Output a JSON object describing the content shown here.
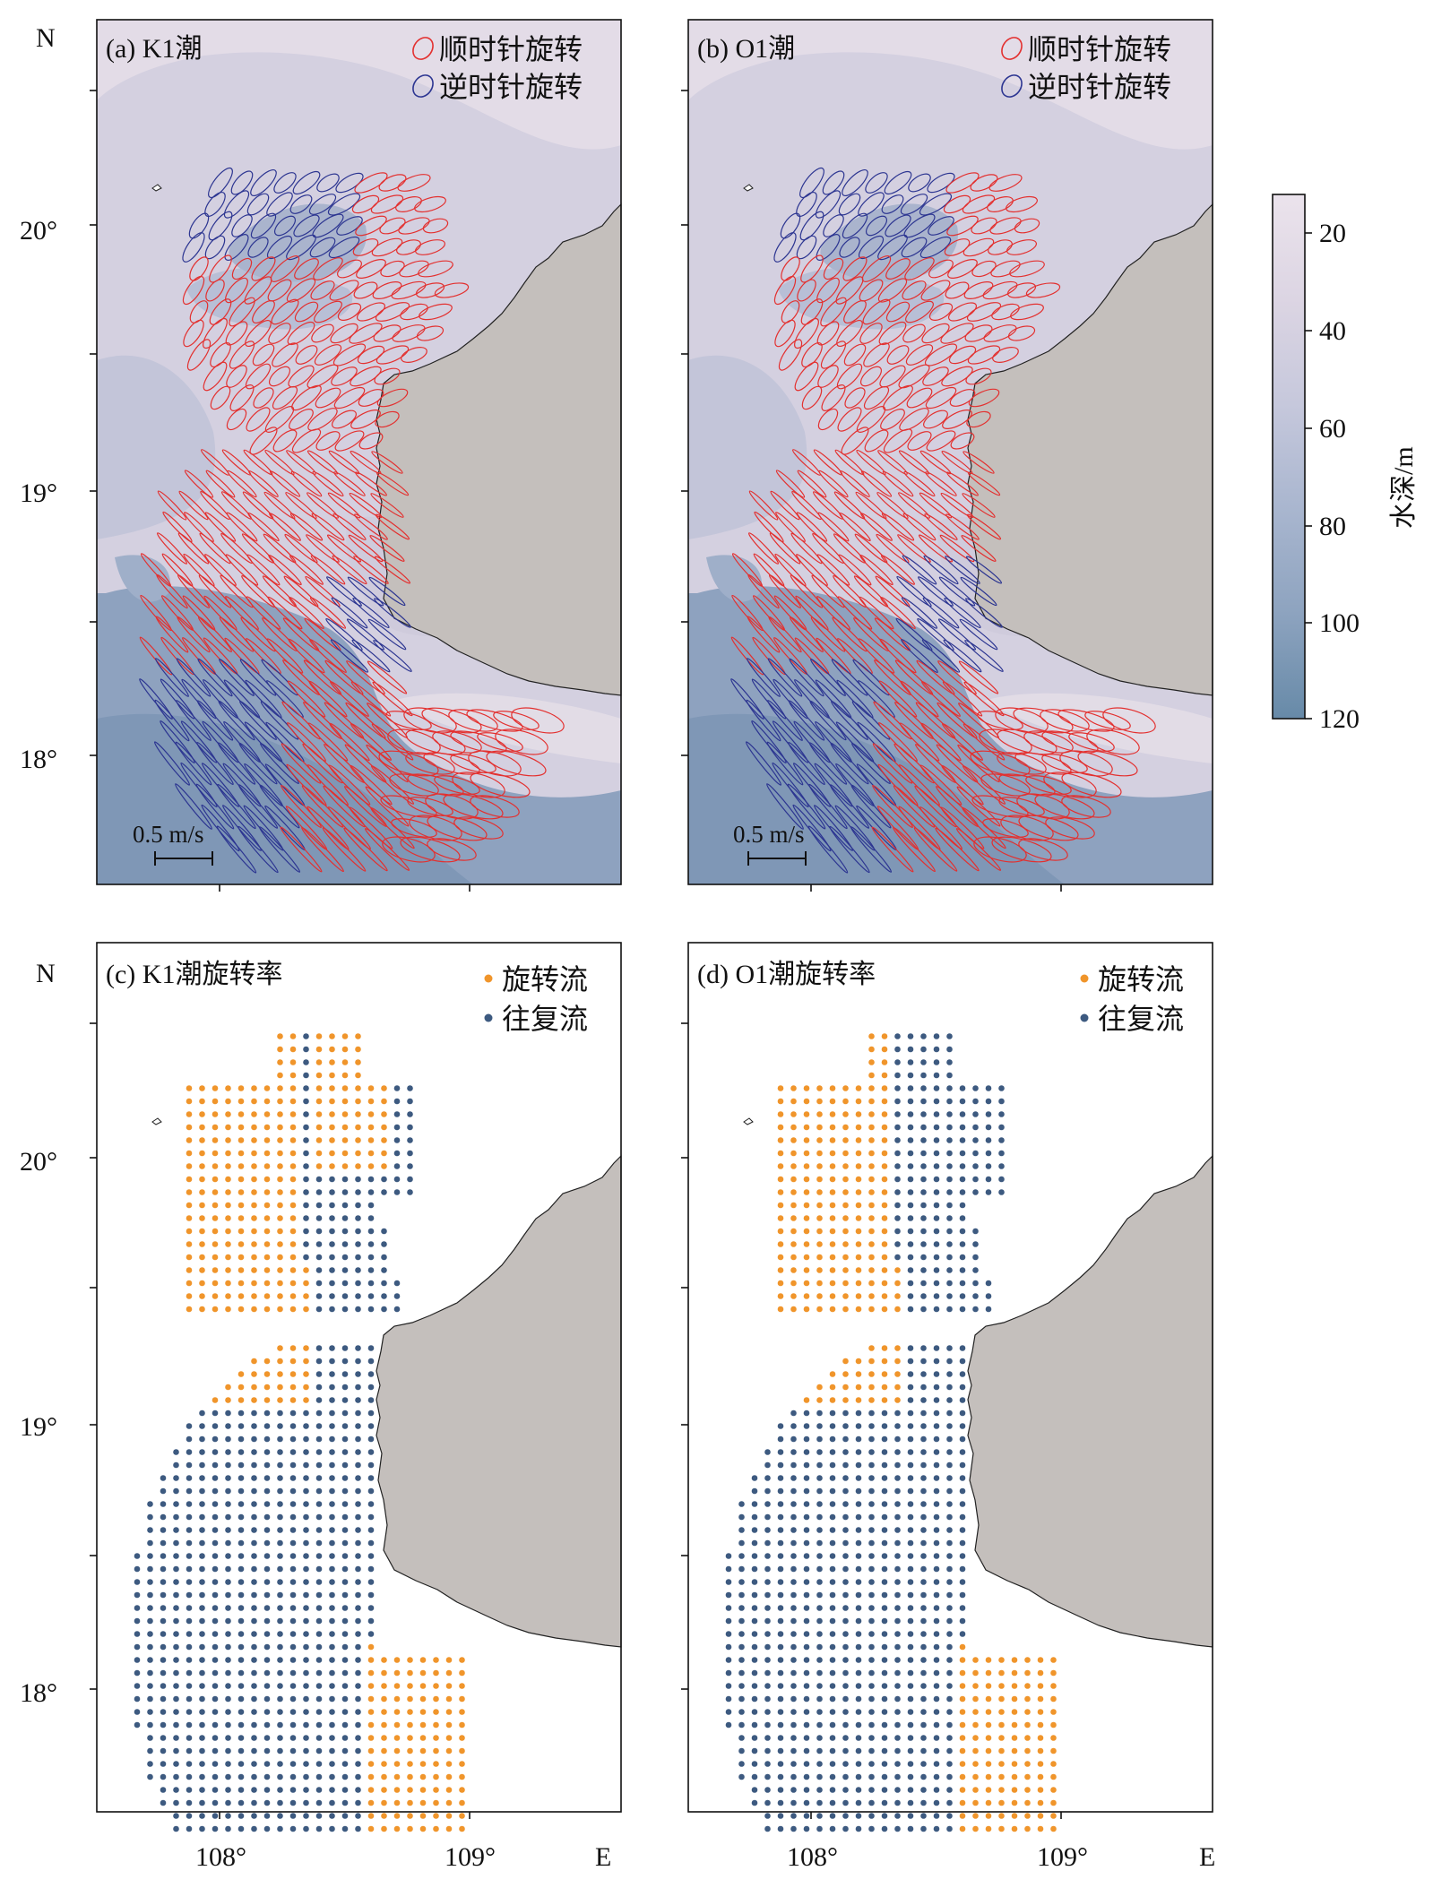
{
  "panels": [
    {
      "id": "a",
      "label": "(a) K1潮",
      "type": "ellipse",
      "legend": [
        {
          "text": "顺时针旋转",
          "color": "#e3302f"
        },
        {
          "text": "逆时针旋转",
          "color": "#2c3591"
        }
      ],
      "scale_label": "0.5 m/s"
    },
    {
      "id": "b",
      "label": "(b) O1潮",
      "type": "ellipse",
      "legend": [
        {
          "text": "顺时针旋转",
          "color": "#e3302f"
        },
        {
          "text": "逆时针旋转",
          "color": "#2c3591"
        }
      ],
      "scale_label": "0.5 m/s"
    },
    {
      "id": "c",
      "label": "(c) K1潮旋转率",
      "type": "dots",
      "legend": [
        {
          "text": "旋转流",
          "color": "#f0952b"
        },
        {
          "text": "往复流",
          "color": "#3d5a80"
        }
      ]
    },
    {
      "id": "d",
      "label": "(d) O1潮旋转率",
      "type": "dots",
      "legend": [
        {
          "text": "旋转流",
          "color": "#f0952b"
        },
        {
          "text": "往复流",
          "color": "#3d5a80"
        }
      ]
    }
  ],
  "axes": {
    "lat_ticks": [
      "20°",
      "19°",
      "18°"
    ],
    "lon_ticks": [
      "108°",
      "109°"
    ],
    "north_label": "N",
    "east_label": "E"
  },
  "colorbar": {
    "title": "水深/m",
    "ticks": [
      "20",
      "40",
      "60",
      "80",
      "100",
      "120"
    ],
    "colors": [
      "#e9e1ea",
      "#d6d3e2",
      "#bcc3d8",
      "#a1b1cb",
      "#8aa1bd",
      "#6e8caa"
    ]
  },
  "land_color": "#c4bfbc"
}
